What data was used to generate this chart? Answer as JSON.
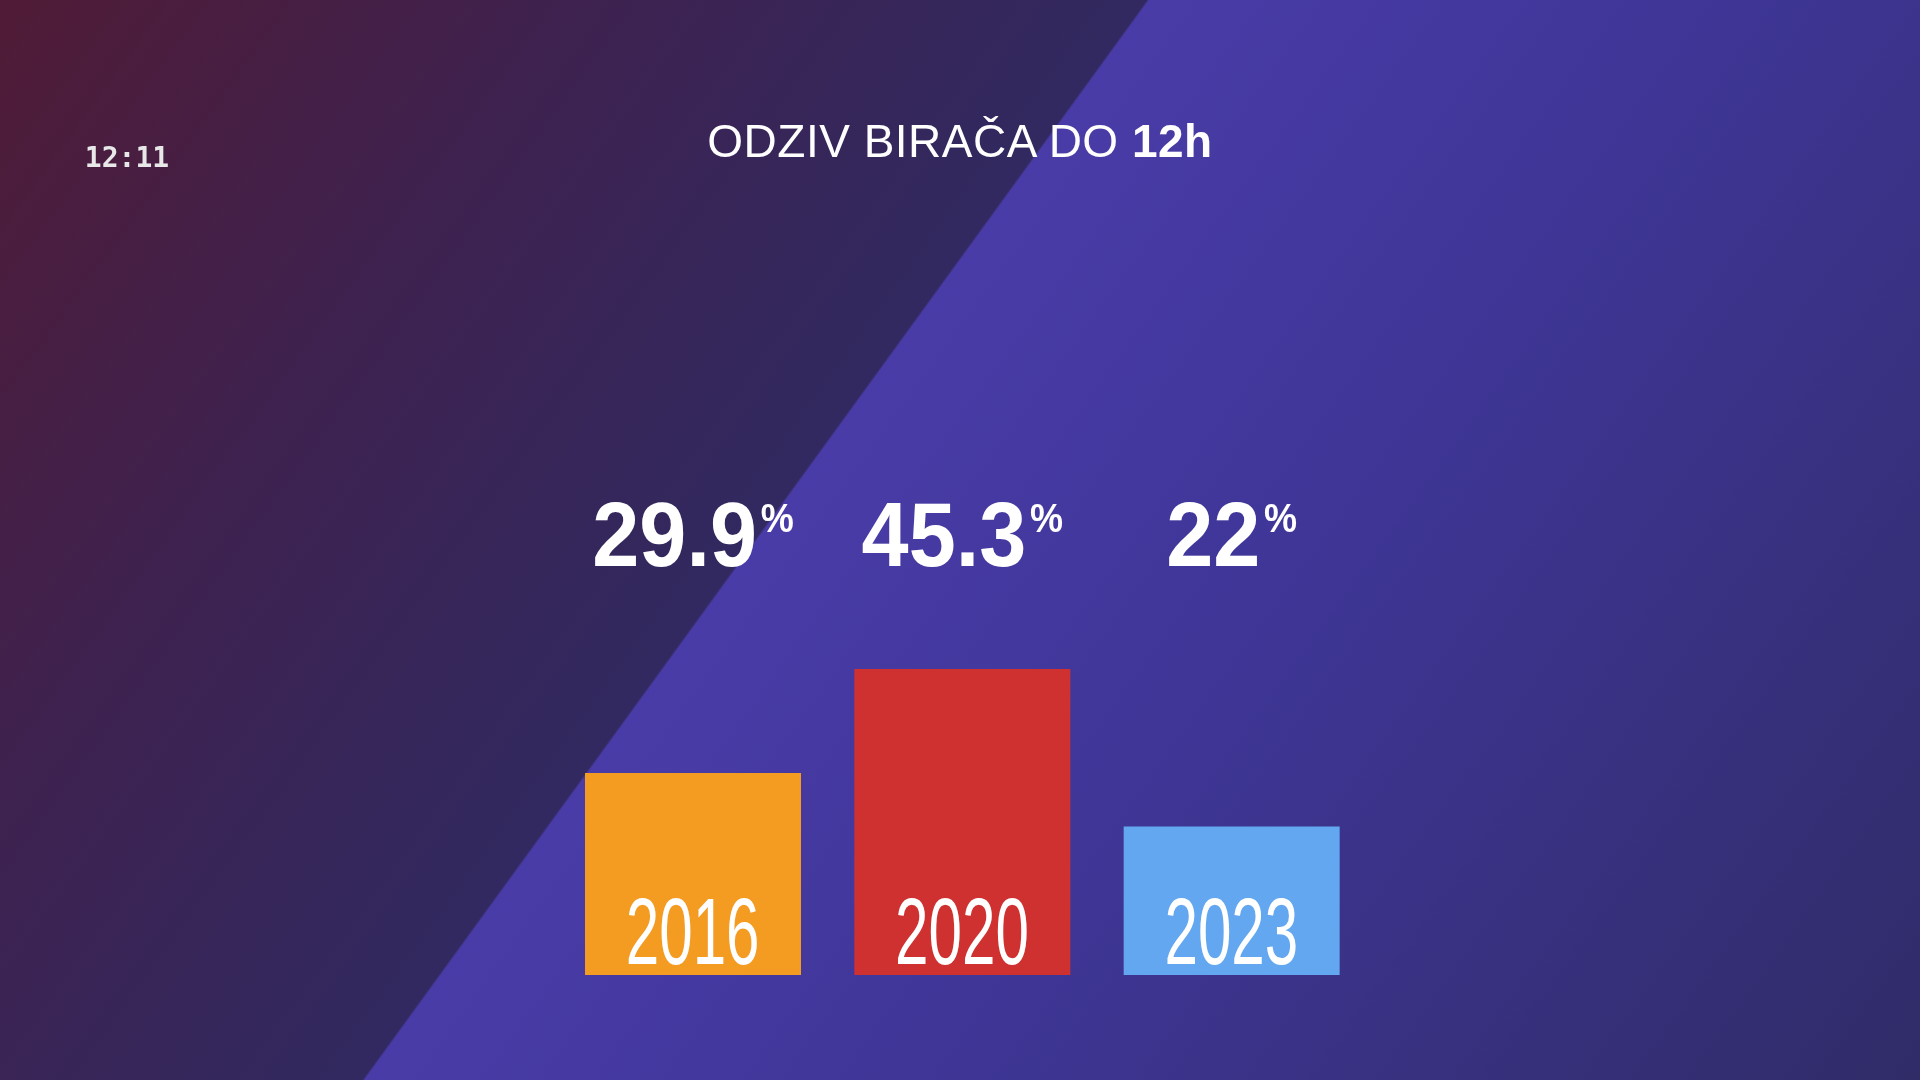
{
  "chart_data": {
    "type": "bar",
    "title": "ODZIV BIRAČA DO 12h",
    "categories": [
      "2016",
      "2020",
      "2023"
    ],
    "values": [
      29.9,
      45.3,
      22
    ],
    "colors": [
      "#f49b22",
      "#cf3030",
      "#63a7f0"
    ],
    "value_labels": [
      "29.9$^{%}$",
      "45.3$^{%}$",
      "22$^{%}$"
    ],
    "annotations": [
      "12:11"
    ]
  }
}
